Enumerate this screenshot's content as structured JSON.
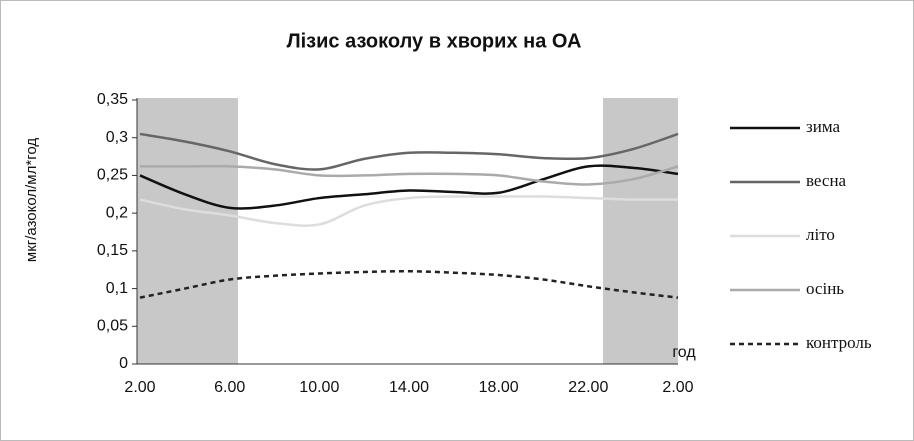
{
  "chart_data": {
    "type": "line",
    "title": "Лізис азоколу в хворих на ОА",
    "y_label": "мкг/азокол/мл*год",
    "x_label": "год",
    "categories": [
      "2.00",
      null,
      "6.00",
      null,
      "10.00",
      null,
      "14.00",
      null,
      "18.00",
      null,
      "22.00",
      null,
      "2.00"
    ],
    "series": [
      {
        "name": "зима",
        "color": "#111111",
        "dashed": false,
        "values": [
          0.25,
          0.225,
          0.207,
          0.21,
          0.22,
          0.225,
          0.23,
          0.228,
          0.227,
          0.245,
          0.262,
          0.26,
          0.252
        ]
      },
      {
        "name": "весна",
        "color": "#666666",
        "dashed": false,
        "values": [
          0.305,
          0.295,
          0.282,
          0.265,
          0.258,
          0.272,
          0.28,
          0.28,
          0.278,
          0.273,
          0.273,
          0.285,
          0.305
        ]
      },
      {
        "name": "літо",
        "color": "#dddddd",
        "dashed": false,
        "values": [
          0.218,
          0.205,
          0.197,
          0.187,
          0.185,
          0.21,
          0.22,
          0.222,
          0.222,
          0.222,
          0.22,
          0.218,
          0.218
        ]
      },
      {
        "name": "осінь",
        "color": "#aaaaaa",
        "dashed": false,
        "values": [
          0.262,
          0.262,
          0.262,
          0.258,
          0.25,
          0.25,
          0.252,
          0.252,
          0.25,
          0.242,
          0.238,
          0.245,
          0.262
        ]
      },
      {
        "name": "контроль",
        "color": "#222222",
        "dashed": true,
        "values": [
          0.088,
          0.1,
          0.112,
          0.117,
          0.12,
          0.122,
          0.123,
          0.121,
          0.118,
          0.112,
          0.103,
          0.095,
          0.088
        ]
      }
    ],
    "ylim": [
      0,
      0.35
    ],
    "yticks": [
      {
        "value": 0,
        "label": "0"
      },
      {
        "value": 0.05,
        "label": "0,05"
      },
      {
        "value": 0.1,
        "label": "0,1"
      },
      {
        "value": 0.15,
        "label": "0,15"
      },
      {
        "value": 0.2,
        "label": "0,2"
      },
      {
        "value": 0.25,
        "label": "0,25"
      },
      {
        "value": 0.3,
        "label": "0,3"
      },
      {
        "value": 0.35,
        "label": "0,35"
      }
    ]
  }
}
